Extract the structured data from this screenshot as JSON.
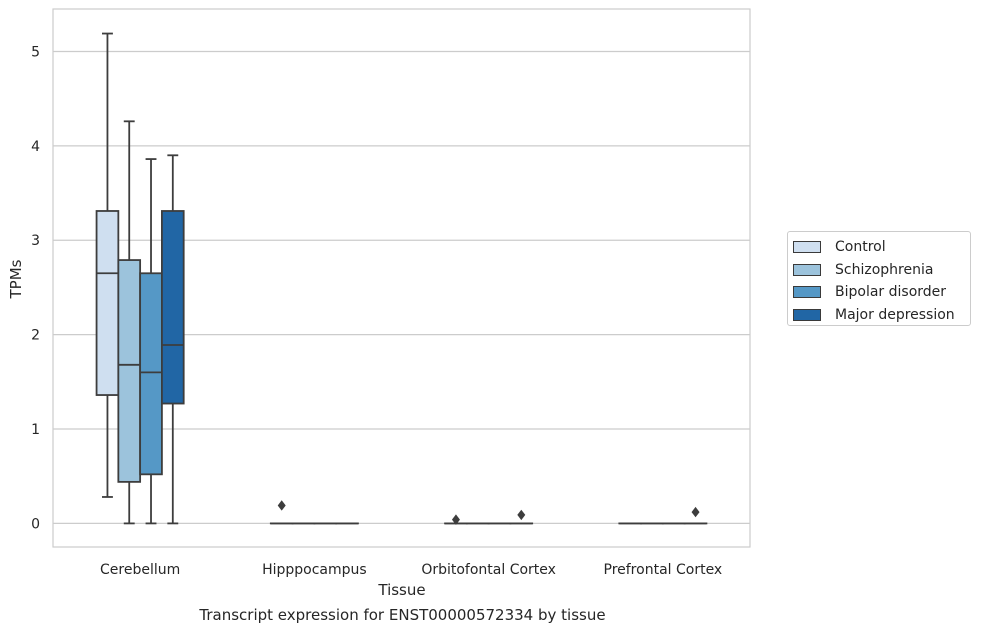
{
  "chart_data": {
    "type": "box",
    "xlabel": "Tissue",
    "ylabel": "TPMs",
    "caption": "Transcript expression for ENST00000572334 by tissue",
    "ylim": [
      -0.25,
      5.45
    ],
    "yticks": [
      0,
      1,
      2,
      3,
      4,
      5
    ],
    "grid": "horizontal",
    "legend_position": "right",
    "categories": [
      "Cerebellum",
      "Hipppocampus",
      "Orbitofontal Cortex",
      "Prefrontal Cortex"
    ],
    "series": [
      {
        "name": "Control",
        "color": "#cfdff0",
        "boxes": [
          {
            "q1": 1.36,
            "median": 2.65,
            "q3": 3.31,
            "whisker_low": 0.28,
            "whisker_high": 5.19,
            "outliers": []
          },
          {
            "q1": 0,
            "median": 0,
            "q3": 0,
            "whisker_low": 0,
            "whisker_high": 0,
            "outliers": [
              0.19
            ]
          },
          {
            "q1": 0,
            "median": 0,
            "q3": 0,
            "whisker_low": 0,
            "whisker_high": 0,
            "outliers": [
              0.04
            ]
          },
          {
            "q1": 0,
            "median": 0,
            "q3": 0,
            "whisker_low": 0,
            "whisker_high": 0,
            "outliers": []
          }
        ]
      },
      {
        "name": "Schizophrenia",
        "color": "#9cc3dc",
        "boxes": [
          {
            "q1": 0.44,
            "median": 1.68,
            "q3": 2.79,
            "whisker_low": 0,
            "whisker_high": 4.26,
            "outliers": []
          },
          {
            "q1": 0,
            "median": 0,
            "q3": 0,
            "whisker_low": 0,
            "whisker_high": 0,
            "outliers": []
          },
          {
            "q1": 0,
            "median": 0,
            "q3": 0,
            "whisker_low": 0,
            "whisker_high": 0,
            "outliers": []
          },
          {
            "q1": 0,
            "median": 0,
            "q3": 0,
            "whisker_low": 0,
            "whisker_high": 0,
            "outliers": []
          }
        ]
      },
      {
        "name": "Bipolar disorder",
        "color": "#5598c6",
        "boxes": [
          {
            "q1": 0.52,
            "median": 1.6,
            "q3": 2.65,
            "whisker_low": 0,
            "whisker_high": 3.86,
            "outliers": []
          },
          {
            "q1": 0,
            "median": 0,
            "q3": 0,
            "whisker_low": 0,
            "whisker_high": 0,
            "outliers": []
          },
          {
            "q1": 0,
            "median": 0,
            "q3": 0,
            "whisker_low": 0,
            "whisker_high": 0,
            "outliers": []
          },
          {
            "q1": 0,
            "median": 0,
            "q3": 0,
            "whisker_low": 0,
            "whisker_high": 0,
            "outliers": []
          }
        ]
      },
      {
        "name": "Major depression",
        "color": "#2166a5",
        "boxes": [
          {
            "q1": 1.27,
            "median": 1.89,
            "q3": 3.31,
            "whisker_low": 0,
            "whisker_high": 3.9,
            "outliers": []
          },
          {
            "q1": 0,
            "median": 0,
            "q3": 0,
            "whisker_low": 0,
            "whisker_high": 0,
            "outliers": []
          },
          {
            "q1": 0,
            "median": 0,
            "q3": 0,
            "whisker_low": 0,
            "whisker_high": 0,
            "outliers": [
              0.09
            ]
          },
          {
            "q1": 0,
            "median": 0,
            "q3": 0,
            "whisker_low": 0,
            "whisker_high": 0,
            "outliers": [
              0.12
            ]
          }
        ]
      }
    ]
  }
}
